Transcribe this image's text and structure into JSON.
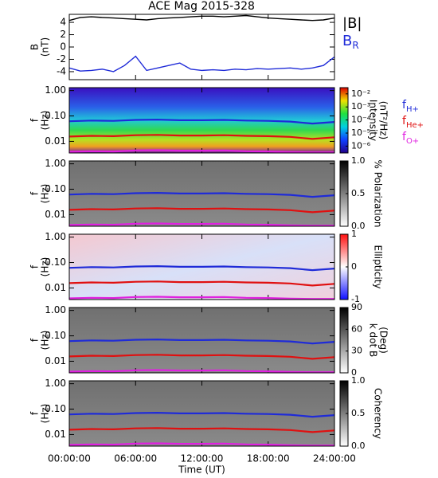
{
  "chart_data": [
    {
      "type": "line",
      "title": "ACE Mag 2015-328",
      "ylabel": [
        "B",
        "(nT)"
      ],
      "x": [
        0,
        1,
        2,
        3,
        4,
        5,
        6,
        7,
        8,
        9,
        10,
        11,
        12,
        13,
        14,
        15,
        16,
        17,
        18,
        19,
        20,
        21,
        22,
        23,
        24
      ],
      "xlim": [
        0,
        24
      ],
      "xticks": [
        0,
        6,
        12,
        18,
        24
      ],
      "ylim": [
        -5.3,
        5.3
      ],
      "yticks": [
        -4,
        -2,
        0,
        2,
        4
      ],
      "series": [
        {
          "name": "|B|",
          "color": "#000000",
          "values": [
            4.3,
            4.8,
            4.9,
            4.8,
            4.7,
            4.6,
            4.5,
            4.4,
            4.6,
            4.7,
            4.8,
            4.9,
            5.0,
            5.0,
            4.9,
            5.0,
            5.1,
            4.9,
            4.7,
            4.6,
            4.5,
            4.4,
            4.3,
            4.4,
            4.7
          ]
        },
        {
          "name": "B",
          "subscript": "R",
          "color": "#1f2bd8",
          "values": [
            -3.4,
            -3.9,
            -3.8,
            -3.6,
            -4.0,
            -3.0,
            -1.5,
            -3.8,
            -3.4,
            -3.0,
            -2.6,
            -3.6,
            -3.8,
            -3.7,
            -3.8,
            -3.6,
            -3.7,
            -3.5,
            -3.6,
            -3.5,
            -3.4,
            -3.6,
            -3.4,
            -3.0,
            -1.6
          ]
        }
      ]
    },
    {
      "type": "spectrogram",
      "ylabel": [
        "f",
        "(Hz)"
      ],
      "log": true,
      "x": [
        0,
        2,
        4,
        6,
        8,
        10,
        12,
        14,
        16,
        18,
        20,
        22,
        24
      ],
      "xlim": [
        0,
        24
      ],
      "xticks": [
        0,
        6,
        12,
        18,
        24
      ],
      "ylim": [
        0.0035,
        1.3
      ],
      "yticks": [
        {
          "value": 0.01,
          "label": "0.01"
        },
        {
          "value": 0.1,
          "label": "0.10"
        },
        {
          "value": 1,
          "label": "1.00"
        }
      ],
      "colorbar": {
        "label": [
          "Intensity",
          "(nT²/Hz)"
        ],
        "log": true,
        "clim": [
          3e-07,
          0.03
        ],
        "ticks": [
          {
            "value": 0.01,
            "label": "10⁻²"
          },
          {
            "value": 0.001,
            "label": "10⁻³"
          },
          {
            "value": 0.0001,
            "label": "10⁻⁴"
          },
          {
            "value": 1e-05,
            "label": "10⁻⁵"
          },
          {
            "value": 1e-06,
            "label": "10⁻⁶"
          }
        ]
      },
      "series": [
        {
          "name": "f",
          "subscript": "H+",
          "color": "#1f2bd8",
          "values": [
            0.062,
            0.066,
            0.064,
            0.07,
            0.072,
            0.068,
            0.068,
            0.07,
            0.066,
            0.064,
            0.06,
            0.05,
            0.058
          ]
        },
        {
          "name": "f",
          "subscript": "He+",
          "color": "#e01010",
          "values": [
            0.0155,
            0.0165,
            0.016,
            0.0175,
            0.018,
            0.017,
            0.017,
            0.0175,
            0.0165,
            0.016,
            0.015,
            0.0125,
            0.0145
          ]
        },
        {
          "name": "f",
          "subscript": "O+",
          "color": "#e020e0",
          "values": [
            0.0039,
            0.0041,
            0.004,
            0.0044,
            0.0045,
            0.0043,
            0.0043,
            0.0044,
            0.0041,
            0.004,
            0.0038,
            0.0037,
            0.0037
          ]
        }
      ]
    },
    {
      "type": "spectrogram",
      "ylabel": [
        "f",
        "(Hz)"
      ],
      "log": true,
      "x": [
        0,
        2,
        4,
        6,
        8,
        10,
        12,
        14,
        16,
        18,
        20,
        22,
        24
      ],
      "xlim": [
        0,
        24
      ],
      "xticks": [
        0,
        6,
        12,
        18,
        24
      ],
      "ylim": [
        0.0035,
        1.3
      ],
      "yticks": [
        {
          "value": 0.01,
          "label": "0.01"
        },
        {
          "value": 0.1,
          "label": "0.10"
        },
        {
          "value": 1,
          "label": "1.00"
        }
      ],
      "colorbar": {
        "label": [
          "% Polarization"
        ],
        "clim": [
          0,
          1
        ],
        "ticks": [
          {
            "value": 0,
            "label": "0.0"
          },
          {
            "value": 0.5,
            "label": "0.5"
          },
          {
            "value": 1,
            "label": "1.0"
          }
        ]
      },
      "series": [
        {
          "color": "#1f2bd8",
          "values": [
            0.062,
            0.066,
            0.064,
            0.07,
            0.072,
            0.068,
            0.068,
            0.07,
            0.066,
            0.064,
            0.06,
            0.05,
            0.058
          ]
        },
        {
          "color": "#e01010",
          "values": [
            0.0155,
            0.0165,
            0.016,
            0.0175,
            0.018,
            0.017,
            0.017,
            0.0175,
            0.0165,
            0.016,
            0.015,
            0.0125,
            0.0145
          ]
        },
        {
          "color": "#e020e0",
          "values": [
            0.0039,
            0.0041,
            0.004,
            0.0044,
            0.0045,
            0.0043,
            0.0043,
            0.0044,
            0.0041,
            0.004,
            0.0038,
            0.0037,
            0.0037
          ]
        }
      ]
    },
    {
      "type": "spectrogram",
      "ylabel": [
        "f",
        "(Hz)"
      ],
      "log": true,
      "x": [
        0,
        2,
        4,
        6,
        8,
        10,
        12,
        14,
        16,
        18,
        20,
        22,
        24
      ],
      "xlim": [
        0,
        24
      ],
      "xticks": [
        0,
        6,
        12,
        18,
        24
      ],
      "ylim": [
        0.0035,
        1.3
      ],
      "yticks": [
        {
          "value": 0.01,
          "label": "0.01"
        },
        {
          "value": 0.1,
          "label": "0.10"
        },
        {
          "value": 1,
          "label": "1.00"
        }
      ],
      "colorbar": {
        "label": [
          "Ellipticity"
        ],
        "clim": [
          -1,
          1
        ],
        "ticks": [
          -1,
          0,
          1
        ]
      },
      "series": [
        {
          "color": "#1f2bd8",
          "values": [
            0.062,
            0.066,
            0.064,
            0.07,
            0.072,
            0.068,
            0.068,
            0.07,
            0.066,
            0.064,
            0.06,
            0.05,
            0.058
          ]
        },
        {
          "color": "#e01010",
          "values": [
            0.0155,
            0.0165,
            0.016,
            0.0175,
            0.018,
            0.017,
            0.017,
            0.0175,
            0.0165,
            0.016,
            0.015,
            0.0125,
            0.0145
          ]
        },
        {
          "color": "#e020e0",
          "values": [
            0.0039,
            0.0041,
            0.004,
            0.0044,
            0.0045,
            0.0043,
            0.0043,
            0.0044,
            0.0041,
            0.004,
            0.0038,
            0.0037,
            0.0037
          ]
        }
      ]
    },
    {
      "type": "spectrogram",
      "ylabel": [
        "f",
        "(Hz)"
      ],
      "log": true,
      "x": [
        0,
        2,
        4,
        6,
        8,
        10,
        12,
        14,
        16,
        18,
        20,
        22,
        24
      ],
      "xlim": [
        0,
        24
      ],
      "xticks": [
        0,
        6,
        12,
        18,
        24
      ],
      "ylim": [
        0.0035,
        1.3
      ],
      "yticks": [
        {
          "value": 0.01,
          "label": "0.01"
        },
        {
          "value": 0.1,
          "label": "0.10"
        },
        {
          "value": 1,
          "label": "1.00"
        }
      ],
      "colorbar": {
        "label": [
          "k dot B",
          "(Deg)"
        ],
        "clim": [
          0,
          90
        ],
        "ticks": [
          0,
          30,
          60,
          90
        ]
      },
      "series": [
        {
          "color": "#1f2bd8",
          "values": [
            0.062,
            0.066,
            0.064,
            0.07,
            0.072,
            0.068,
            0.068,
            0.07,
            0.066,
            0.064,
            0.06,
            0.05,
            0.058
          ]
        },
        {
          "color": "#e01010",
          "values": [
            0.0155,
            0.0165,
            0.016,
            0.0175,
            0.018,
            0.017,
            0.017,
            0.0175,
            0.0165,
            0.016,
            0.015,
            0.0125,
            0.0145
          ]
        },
        {
          "color": "#e020e0",
          "values": [
            0.0039,
            0.0041,
            0.004,
            0.0044,
            0.0045,
            0.0043,
            0.0043,
            0.0044,
            0.0041,
            0.004,
            0.0038,
            0.0037,
            0.0037
          ]
        }
      ]
    },
    {
      "type": "spectrogram",
      "ylabel": [
        "f",
        "(Hz)"
      ],
      "log": true,
      "x": [
        0,
        2,
        4,
        6,
        8,
        10,
        12,
        14,
        16,
        18,
        20,
        22,
        24
      ],
      "xlim": [
        0,
        24
      ],
      "xticks": [
        {
          "value": 0,
          "label": "00:00:00"
        },
        {
          "value": 6,
          "label": "06:00:00"
        },
        {
          "value": 12,
          "label": "12:00:00"
        },
        {
          "value": 18,
          "label": "18:00:00"
        },
        {
          "value": 24,
          "label": "24:00:00"
        }
      ],
      "xlabel": "Time (UT)",
      "ylim": [
        0.0035,
        1.3
      ],
      "yticks": [
        {
          "value": 0.01,
          "label": "0.01"
        },
        {
          "value": 0.1,
          "label": "0.10"
        },
        {
          "value": 1,
          "label": "1.00"
        }
      ],
      "colorbar": {
        "label": [
          "Coherency"
        ],
        "clim": [
          0,
          1
        ],
        "ticks": [
          {
            "value": 0,
            "label": "0.0"
          },
          {
            "value": 0.5,
            "label": "0.5"
          },
          {
            "value": 1,
            "label": "1.0"
          }
        ]
      },
      "series": [
        {
          "color": "#1f2bd8",
          "values": [
            0.062,
            0.066,
            0.064,
            0.07,
            0.072,
            0.068,
            0.068,
            0.07,
            0.066,
            0.064,
            0.06,
            0.05,
            0.058
          ]
        },
        {
          "color": "#e01010",
          "values": [
            0.0155,
            0.0165,
            0.016,
            0.0175,
            0.018,
            0.017,
            0.017,
            0.0175,
            0.0165,
            0.016,
            0.015,
            0.0125,
            0.0145
          ]
        },
        {
          "color": "#e020e0",
          "values": [
            0.0039,
            0.0041,
            0.004,
            0.0044,
            0.0045,
            0.0043,
            0.0043,
            0.0044,
            0.0041,
            0.004,
            0.0038,
            0.0037,
            0.0037
          ]
        }
      ]
    }
  ]
}
